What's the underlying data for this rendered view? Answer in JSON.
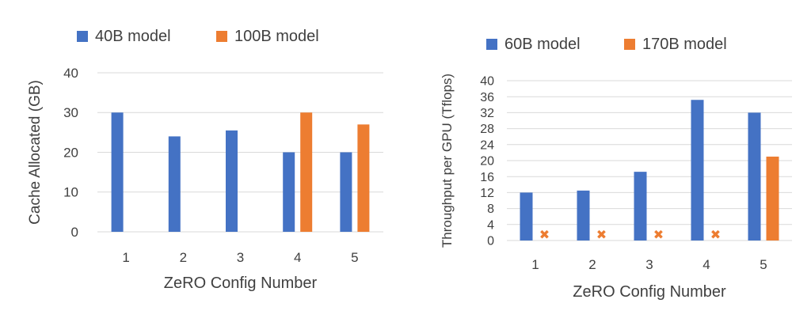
{
  "chart_data": [
    {
      "type": "bar",
      "title": "",
      "xlabel": "ZeRO Config Number",
      "ylabel": "Cache Allocated (GB)",
      "categories": [
        "1",
        "2",
        "3",
        "4",
        "5"
      ],
      "ylim": [
        0,
        40
      ],
      "yticks": [
        0,
        10,
        20,
        30,
        40
      ],
      "grid": true,
      "legend_position": "top",
      "series": [
        {
          "name": "40B model",
          "color": "#4472C4",
          "values": [
            30,
            24,
            25.5,
            20,
            20
          ]
        },
        {
          "name": "100B model",
          "color": "#ED7D31",
          "values": [
            null,
            null,
            null,
            30,
            27
          ]
        }
      ]
    },
    {
      "type": "bar",
      "title": "",
      "xlabel": "ZeRO Config Number",
      "ylabel": "Throughput per GPU (Tflops)",
      "categories": [
        "1",
        "2",
        "3",
        "4",
        "5"
      ],
      "ylim": [
        0,
        40
      ],
      "yticks": [
        0,
        4,
        8,
        12,
        16,
        20,
        24,
        28,
        32,
        36,
        40
      ],
      "grid": true,
      "legend_position": "top",
      "failure_marker": "✖",
      "series": [
        {
          "name": "60B model",
          "color": "#4472C4",
          "values": [
            12,
            12.5,
            17.2,
            35.2,
            32
          ],
          "failed": [
            false,
            false,
            false,
            false,
            false
          ]
        },
        {
          "name": "170B model",
          "color": "#ED7D31",
          "values": [
            null,
            null,
            null,
            null,
            21
          ],
          "failed": [
            true,
            true,
            true,
            true,
            false
          ]
        }
      ]
    }
  ]
}
